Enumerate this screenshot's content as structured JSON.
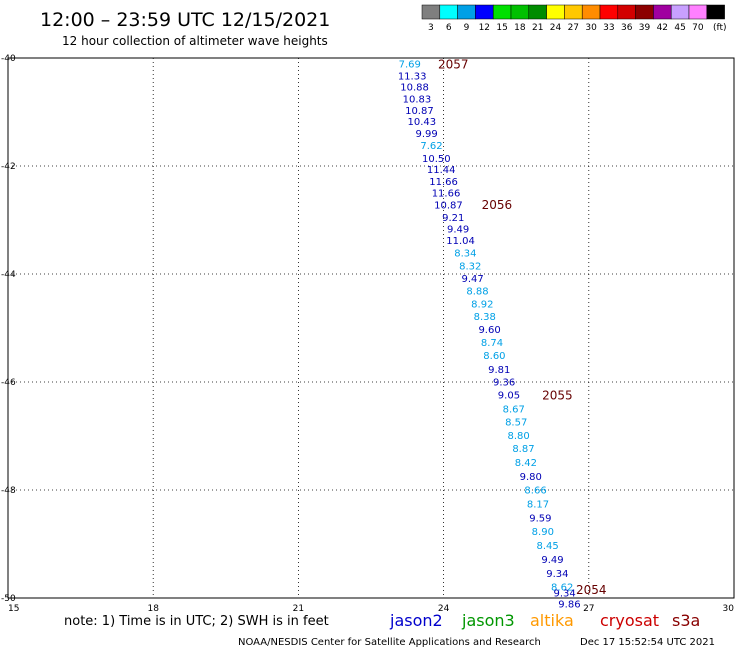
{
  "header": {
    "title": "12:00 – 23:59 UTC 12/15/2021",
    "subtitle": "12 hour collection of altimeter wave heights"
  },
  "color_scale": {
    "bins": [
      {
        "label": "3",
        "color": "#7f7f7f"
      },
      {
        "label": "6",
        "color": "#00ffff"
      },
      {
        "label": "9",
        "color": "#00a0e6"
      },
      {
        "label": "12",
        "color": "#0000ff"
      },
      {
        "label": "15",
        "color": "#00e000"
      },
      {
        "label": "18",
        "color": "#00c000"
      },
      {
        "label": "21",
        "color": "#008c00"
      },
      {
        "label": "24",
        "color": "#ffff00"
      },
      {
        "label": "27",
        "color": "#ffc800"
      },
      {
        "label": "30",
        "color": "#ff8c00"
      },
      {
        "label": "33",
        "color": "#ff0000"
      },
      {
        "label": "36",
        "color": "#d20000"
      },
      {
        "label": "39",
        "color": "#8c0000"
      },
      {
        "label": "42",
        "color": "#a000a0"
      },
      {
        "label": "45",
        "color": "#c8a0ff"
      },
      {
        "label": "70",
        "color": "#ff80ff"
      },
      {
        "label": "",
        "color": "#000000"
      }
    ],
    "unit": "(ft)"
  },
  "chart_data": {
    "type": "scatter",
    "xlim": [
      15,
      30
    ],
    "ylim": [
      -50,
      -40
    ],
    "x_ticks": [
      "15",
      "18",
      "21",
      "24",
      "27",
      "30"
    ],
    "y_ticks": [
      "-40",
      "-42",
      "-44",
      "-46",
      "-48",
      "-50"
    ],
    "grid": true,
    "colors": {
      "light": "#00a0e6",
      "dark": "#0000b4",
      "cycle": "#660000"
    },
    "points": [
      {
        "x": 23.3,
        "y": -40.1,
        "label": "7.69",
        "band": "light"
      },
      {
        "x": 23.35,
        "y": -40.32,
        "label": "11.33",
        "band": "dark"
      },
      {
        "x": 23.4,
        "y": -40.53,
        "label": "10.88",
        "band": "dark"
      },
      {
        "x": 23.45,
        "y": -40.75,
        "label": "10.83",
        "band": "dark"
      },
      {
        "x": 23.5,
        "y": -40.96,
        "label": "10.87",
        "band": "dark"
      },
      {
        "x": 23.55,
        "y": -41.17,
        "label": "10.43",
        "band": "dark"
      },
      {
        "x": 23.65,
        "y": -41.39,
        "label": "9.99",
        "band": "dark"
      },
      {
        "x": 23.75,
        "y": -41.61,
        "label": "7.62",
        "band": "light"
      },
      {
        "x": 23.85,
        "y": -41.85,
        "label": "10.50",
        "band": "dark"
      },
      {
        "x": 23.95,
        "y": -42.06,
        "label": "11.44",
        "band": "dark"
      },
      {
        "x": 24.0,
        "y": -42.28,
        "label": "11.66",
        "band": "dark"
      },
      {
        "x": 24.05,
        "y": -42.49,
        "label": "11.66",
        "band": "dark"
      },
      {
        "x": 24.1,
        "y": -42.71,
        "label": "10.87",
        "band": "dark"
      },
      {
        "x": 24.2,
        "y": -42.94,
        "label": "9.21",
        "band": "dark"
      },
      {
        "x": 24.3,
        "y": -43.16,
        "label": "9.49",
        "band": "dark"
      },
      {
        "x": 24.35,
        "y": -43.37,
        "label": "11.04",
        "band": "dark"
      },
      {
        "x": 24.45,
        "y": -43.6,
        "label": "8.34",
        "band": "light"
      },
      {
        "x": 24.55,
        "y": -43.84,
        "label": "8.32",
        "band": "light"
      },
      {
        "x": 24.6,
        "y": -44.07,
        "label": "9.47",
        "band": "dark"
      },
      {
        "x": 24.7,
        "y": -44.31,
        "label": "8.88",
        "band": "light"
      },
      {
        "x": 24.8,
        "y": -44.55,
        "label": "8.92",
        "band": "light"
      },
      {
        "x": 24.85,
        "y": -44.78,
        "label": "8.38",
        "band": "light"
      },
      {
        "x": 24.95,
        "y": -45.02,
        "label": "9.60",
        "band": "dark"
      },
      {
        "x": 25.0,
        "y": -45.26,
        "label": "8.74",
        "band": "light"
      },
      {
        "x": 25.05,
        "y": -45.5,
        "label": "8.60",
        "band": "light"
      },
      {
        "x": 25.15,
        "y": -45.76,
        "label": "9.81",
        "band": "dark"
      },
      {
        "x": 25.25,
        "y": -45.99,
        "label": "9.36",
        "band": "dark"
      },
      {
        "x": 25.35,
        "y": -46.23,
        "label": "9.05",
        "band": "dark"
      },
      {
        "x": 25.45,
        "y": -46.49,
        "label": "8.67",
        "band": "light"
      },
      {
        "x": 25.5,
        "y": -46.73,
        "label": "8.57",
        "band": "light"
      },
      {
        "x": 25.55,
        "y": -46.98,
        "label": "8.80",
        "band": "light"
      },
      {
        "x": 25.65,
        "y": -47.22,
        "label": "8.87",
        "band": "light"
      },
      {
        "x": 25.7,
        "y": -47.48,
        "label": "8.42",
        "band": "light"
      },
      {
        "x": 25.8,
        "y": -47.74,
        "label": "9.80",
        "band": "dark"
      },
      {
        "x": 25.9,
        "y": -47.99,
        "label": "8.66",
        "band": "light"
      },
      {
        "x": 25.95,
        "y": -48.25,
        "label": "8.17",
        "band": "light"
      },
      {
        "x": 26.0,
        "y": -48.51,
        "label": "9.59",
        "band": "dark"
      },
      {
        "x": 26.05,
        "y": -48.76,
        "label": "8.90",
        "band": "light"
      },
      {
        "x": 26.15,
        "y": -49.02,
        "label": "8.45",
        "band": "light"
      },
      {
        "x": 26.25,
        "y": -49.28,
        "label": "9.49",
        "band": "dark"
      },
      {
        "x": 26.35,
        "y": -49.54,
        "label": "9.34",
        "band": "dark"
      },
      {
        "x": 26.45,
        "y": -49.79,
        "label": "8.62",
        "band": "light"
      },
      {
        "x": 26.5,
        "y": -49.9,
        "label": "9.34",
        "band": "dark"
      },
      {
        "x": 26.6,
        "y": -50.1,
        "label": "9.86",
        "band": "dark"
      }
    ],
    "annotations": [
      {
        "x": 24.2,
        "y": -40.12,
        "text": "2057"
      },
      {
        "x": 25.1,
        "y": -42.72,
        "text": "2056"
      },
      {
        "x": 26.35,
        "y": -46.25,
        "text": "2055"
      },
      {
        "x": 27.05,
        "y": -49.85,
        "text": "2054"
      }
    ]
  },
  "note": "note:  1) Time is in UTC; 2) SWH is in feet",
  "legend": [
    {
      "text": "jason2",
      "color": "#0000cc"
    },
    {
      "text": "jason3",
      "color": "#009600"
    },
    {
      "text": "altika",
      "color": "#ff9900"
    },
    {
      "text": "cryosat",
      "color": "#cc0000"
    },
    {
      "text": "s3a",
      "color": "#880000"
    }
  ],
  "footer": {
    "credit": "NOAA/NESDIS Center for Satellite Applications and Research",
    "timestamp": "Dec 17 15:52:54 UTC 2021"
  }
}
